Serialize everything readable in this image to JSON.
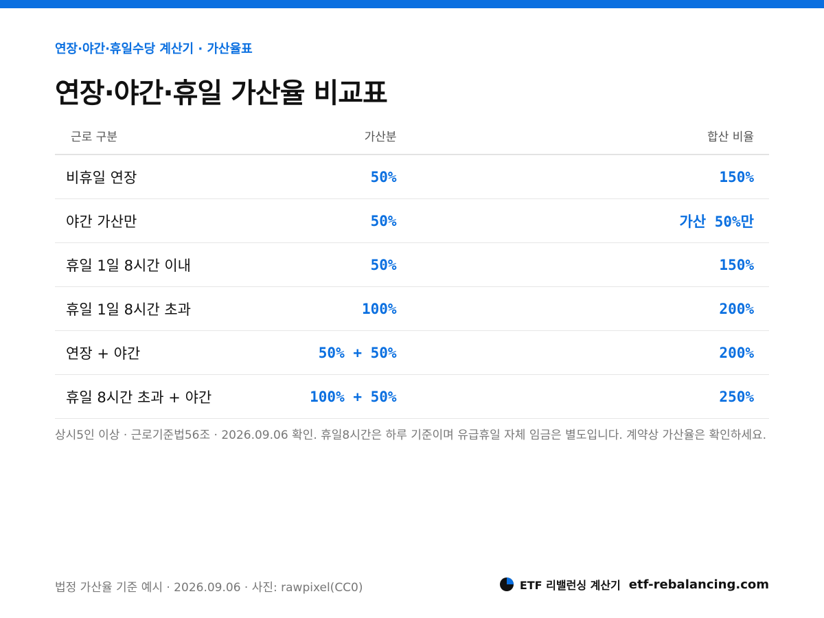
{
  "header": {
    "eyebrow": "연장·야간·휴일수당 계산기 · 가산율표",
    "title": "연장·야간·휴일 가산율 비교표"
  },
  "table": {
    "columns": [
      "근로 구분",
      "가산분",
      "합산 비율"
    ],
    "rows": [
      [
        "비휴일 연장",
        "50%",
        "150%"
      ],
      [
        "야간 가산만",
        "50%",
        "가산 50%만"
      ],
      [
        "휴일 1일 8시간 이내",
        "50%",
        "150%"
      ],
      [
        "휴일 1일 8시간 초과",
        "100%",
        "200%"
      ],
      [
        "연장 + 야간",
        "50% + 50%",
        "200%"
      ],
      [
        "휴일 8시간 초과 + 야간",
        "100% + 50%",
        "250%"
      ]
    ]
  },
  "note": "상시5인 이상 · 근로기준법56조 · 2026.09.06 확인. 휴일8시간은 하루 기준이며 유급휴일 자체 임금은 별도입니다. 계약상 가산율은 확인하세요.",
  "footer": {
    "source": "법정 가산율 기준 예시 · 2026.09.06 · 사진: rawpixel(CC0)",
    "brand": "ETF 리밸런싱 계산기",
    "site": "etf-rebalancing.com"
  }
}
